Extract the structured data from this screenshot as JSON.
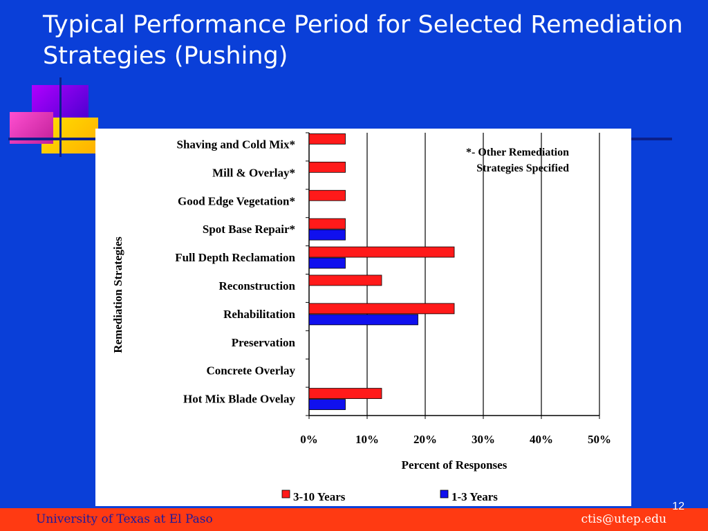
{
  "slide": {
    "title": "Typical Performance Period for Selected Remediation Strategies  (Pushing)",
    "footer_left": "University of Texas at El Paso",
    "footer_right": "ctis@utep.edu",
    "page_number": "12"
  },
  "colors": {
    "background": "#0a3fd8",
    "series_3_10": "#ff1a1a",
    "series_1_3": "#1010ee",
    "footer": "#ff3a12"
  },
  "chart_data": {
    "type": "bar",
    "orientation": "horizontal",
    "xlabel": "Percent of Responses",
    "ylabel": "Remediation Strategies",
    "xlim": [
      0,
      50
    ],
    "xticks": [
      "0%",
      "10%",
      "20%",
      "30%",
      "40%",
      "50%"
    ],
    "categories": [
      "Shaving and Cold Mix*",
      "Mill & Overlay*",
      "Good Edge Vegetation*",
      "Spot Base Repair*",
      "Full Depth Reclamation",
      "Reconstruction",
      "Rehabilitation",
      "Preservation",
      "Concrete Overlay",
      "Hot Mix Blade Ovelay"
    ],
    "series": [
      {
        "name": "3-10 Years",
        "values": [
          6.25,
          6.25,
          6.25,
          6.25,
          25,
          12.5,
          25,
          0,
          0,
          12.5
        ]
      },
      {
        "name": "1-3 Years",
        "values": [
          0,
          0,
          0,
          6.25,
          6.25,
          0,
          18.75,
          0,
          0,
          6.25
        ]
      }
    ],
    "annotation": [
      "*- Other Remediation",
      "Strategies Specified"
    ],
    "gridlines": "vertical",
    "legend_position": "bottom"
  }
}
